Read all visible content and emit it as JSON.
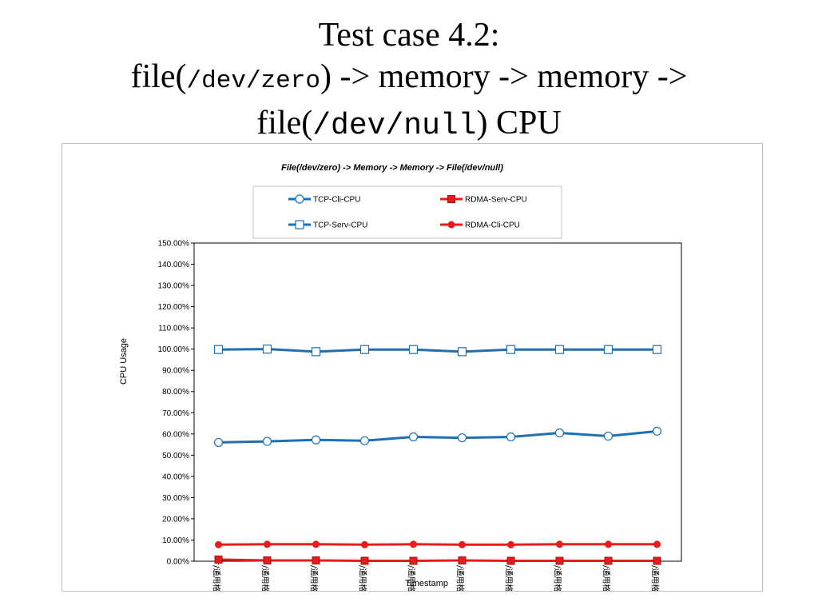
{
  "slide": {
    "title_line1": "Test case 4.2:",
    "title_l2_a": "file(",
    "title_l2_b": "/dev/zero",
    "title_l2_c": ") -> memory -> memory ->",
    "title_l3_a": "file(",
    "title_l3_b": "/dev/null",
    "title_l3_c": ") CPU"
  },
  "chart_data": {
    "type": "line",
    "title": "File(/dev/zero) -> Memory -> Memory -> File(/dev/null)",
    "xlabel": "Timestamp",
    "ylabel": "CPU Usage",
    "ylim": [
      0,
      150
    ],
    "y_tick_step": 10,
    "y_tick_suffix": "%",
    "y_tick_decimals": 2,
    "grid": false,
    "legend": "top",
    "categories": [
      "/通用格式",
      "/通用格式",
      "/通用格式",
      "/通用格式",
      "/通用格式",
      "/通用格式",
      "/通用格式",
      "/通用格式",
      "/通用格式",
      "/通用格式"
    ],
    "series": [
      {
        "name": "TCP-Cli-CPU",
        "color": "#1f6fb5",
        "marker": "circle-open",
        "values": [
          56,
          56.5,
          57.2,
          56.8,
          58.6,
          58.2,
          58.6,
          60.5,
          59,
          61.3
        ]
      },
      {
        "name": "RDMA-Serv-CPU",
        "color": "#e81c1c",
        "marker": "square-filled",
        "values": [
          0.8,
          0.4,
          0.4,
          0.2,
          0.2,
          0.4,
          0.2,
          0.2,
          0.2,
          0.2
        ]
      },
      {
        "name": "TCP-Serv-CPU",
        "color": "#1f6fb5",
        "marker": "square-open",
        "values": [
          99.8,
          100,
          98.8,
          99.8,
          99.8,
          98.8,
          99.8,
          99.8,
          99.8,
          99.8
        ]
      },
      {
        "name": "RDMA-Cli-CPU",
        "color": "#e81c1c",
        "marker": "circle-filled",
        "values": [
          7.8,
          8.0,
          8.0,
          7.8,
          8.0,
          7.8,
          7.8,
          8.0,
          8.0,
          8.0
        ]
      }
    ]
  }
}
